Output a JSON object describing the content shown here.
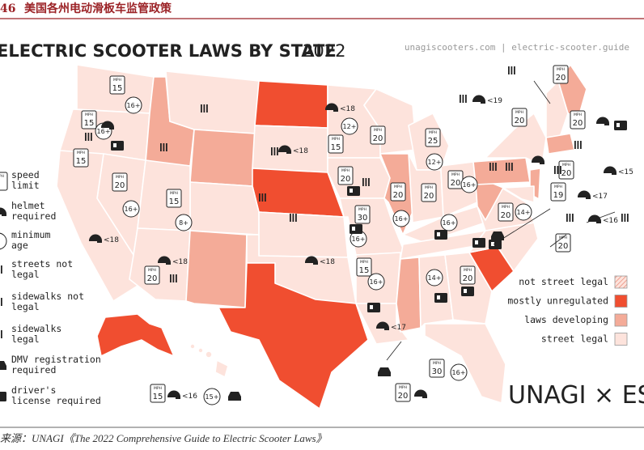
{
  "header": {
    "page_number": "46",
    "title": "美国各州电动滑板车监管政策"
  },
  "map": {
    "title": "ELECTRIC SCOOTER LAWS BY STATE",
    "year": "2022",
    "source_url": "unagiscooters.com | electric-scooter.guide",
    "speed_sign_unit": "MPH",
    "icon_legend": [
      "speed\nlimit",
      "helmet\nrequired",
      "minimum\nage",
      "streets not\nlegal",
      "sidewalks not\nlegal",
      "sidewalks\nlegal",
      "DMV registration\nrequired",
      "driver's\nlicense required"
    ],
    "status_legend": [
      "not street legal",
      "mostly unregulated",
      "laws developing",
      "street legal"
    ],
    "speed_limits": [
      "15",
      "15",
      "15",
      "20",
      "15",
      "20",
      "20",
      "15",
      "25",
      "30",
      "20",
      "20",
      "20",
      "19",
      "20",
      "20",
      "20",
      "20",
      "20",
      "15",
      "20",
      "20",
      "30",
      "20",
      "15",
      "20"
    ],
    "minimum_ages": [
      "16+",
      "16+",
      "16+",
      "8+",
      "12+",
      "12+",
      "16+",
      "16+",
      "16+",
      "16+",
      "16+",
      "14+",
      "14+",
      "16+",
      "15+"
    ],
    "helmet_ages": [
      "<18",
      "<18",
      "<18",
      "<18",
      "<18",
      "<17",
      "<19",
      "<17",
      "<15",
      "<16",
      "<16"
    ],
    "brand": "UNAGI × ESG"
  },
  "footer": {
    "source": "来源：UNAGI《The 2022 Comprehensive Guide to Electric Scooter Laws》"
  }
}
